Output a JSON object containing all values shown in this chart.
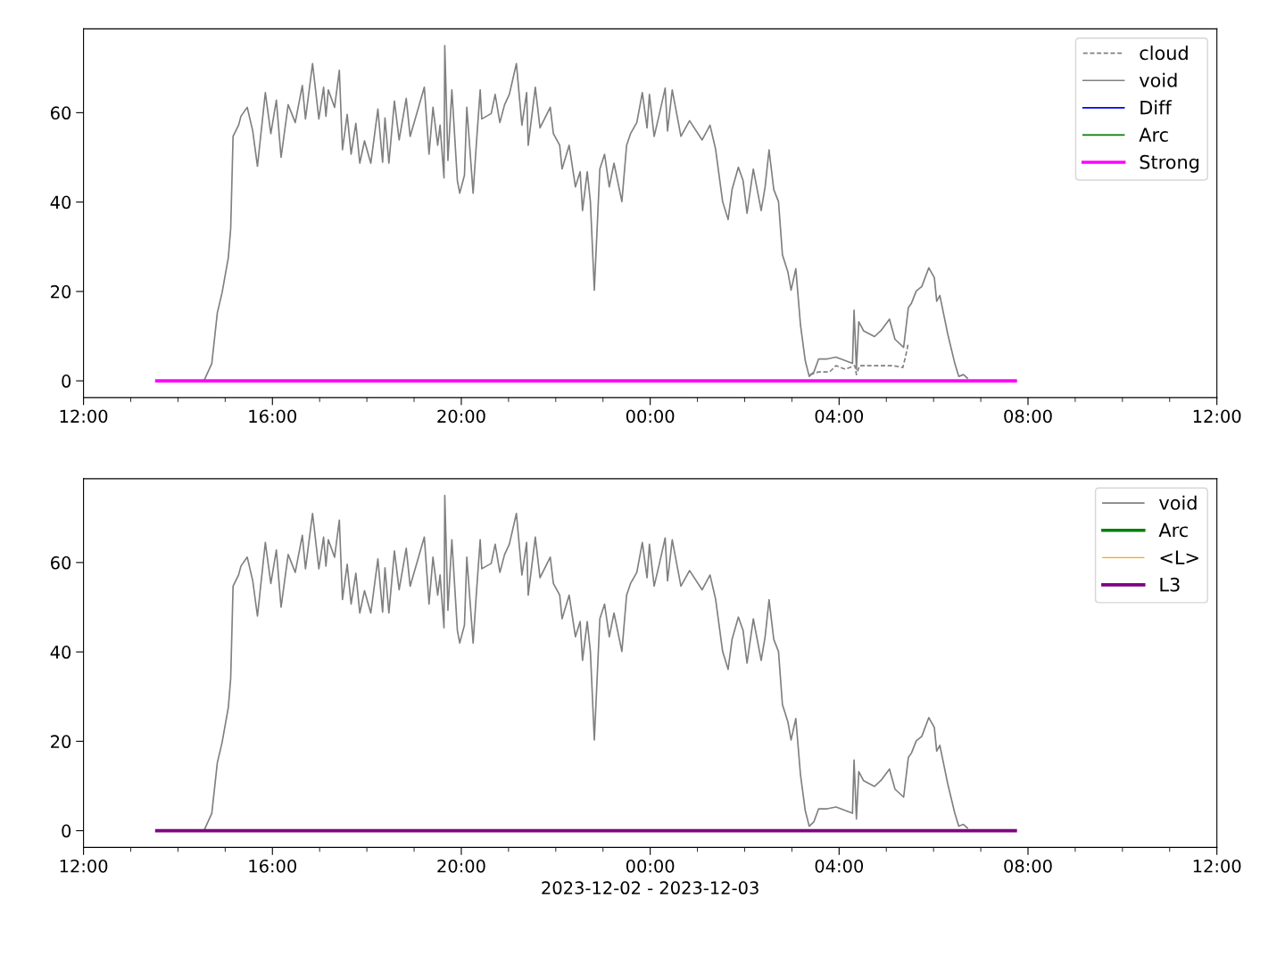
{
  "chart_data": [
    {
      "type": "line",
      "xlim": [
        "2023-12-02T12:00",
        "2023-12-03T12:00"
      ],
      "ylim": [
        -3.75,
        78.75
      ],
      "yticks": [
        0,
        20,
        40,
        60
      ],
      "xticks": [
        {
          "value": "2023-12-02T12:00",
          "label": "12:00"
        },
        {
          "value": "2023-12-02T13:00",
          "label": null
        },
        {
          "value": "2023-12-02T14:00",
          "label": null
        },
        {
          "value": "2023-12-02T15:00",
          "label": null
        },
        {
          "value": "2023-12-02T16:00",
          "label": "16:00"
        },
        {
          "value": "2023-12-02T17:00",
          "label": null
        },
        {
          "value": "2023-12-02T18:00",
          "label": null
        },
        {
          "value": "2023-12-02T19:00",
          "label": null
        },
        {
          "value": "2023-12-02T20:00",
          "label": "20:00"
        },
        {
          "value": "2023-12-02T21:00",
          "label": null
        },
        {
          "value": "2023-12-02T22:00",
          "label": null
        },
        {
          "value": "2023-12-02T23:00",
          "label": null
        },
        {
          "value": "2023-12-03T00:00",
          "label": "00:00"
        },
        {
          "value": "2023-12-03T01:00",
          "label": null
        },
        {
          "value": "2023-12-03T02:00",
          "label": null
        },
        {
          "value": "2023-12-03T03:00",
          "label": null
        },
        {
          "value": "2023-12-03T04:00",
          "label": "04:00"
        },
        {
          "value": "2023-12-03T05:00",
          "label": null
        },
        {
          "value": "2023-12-03T06:00",
          "label": null
        },
        {
          "value": "2023-12-03T07:00",
          "label": null
        },
        {
          "value": "2023-12-03T08:00",
          "label": "08:00"
        },
        {
          "value": "2023-12-03T09:00",
          "label": null
        },
        {
          "value": "2023-12-03T10:00",
          "label": null
        },
        {
          "value": "2023-12-03T11:00",
          "label": null
        },
        {
          "value": "2023-12-03T12:00",
          "label": "12:00"
        }
      ],
      "legend": "top right",
      "series": [
        {
          "name": "cloud",
          "color": "#808080",
          "line_style": "dashed",
          "x": [
            "2023-12-03T03:23",
            "2023-12-03T03:34",
            "2023-12-03T03:48",
            "2023-12-03T03:56",
            "2023-12-03T04:08",
            "2023-12-03T04:20",
            "2023-12-03T04:22",
            "2023-12-03T04:26",
            "2023-12-03T04:53",
            "2023-12-03T05:08",
            "2023-12-03T05:21",
            "2023-12-03T05:25",
            "2023-12-03T05:28"
          ],
          "values": [
            1.4,
            2,
            2,
            3.4,
            2.6,
            3.4,
            1.4,
            3.4,
            3.4,
            3.4,
            3,
            5.9,
            8.5
          ]
        },
        {
          "name": "void",
          "color": "#808080",
          "line_style": "solid",
          "x": [
            "2023-12-02T14:33",
            "2023-12-02T14:43",
            "2023-12-02T14:50",
            "2023-12-02T14:56",
            "2023-12-02T15:04",
            "2023-12-02T15:07",
            "2023-12-02T15:10",
            "2023-12-02T15:17",
            "2023-12-02T15:20",
            "2023-12-02T15:28",
            "2023-12-02T15:35",
            "2023-12-02T15:41",
            "2023-12-02T15:51",
            "2023-12-02T15:58",
            "2023-12-02T16:05",
            "2023-12-02T16:11",
            "2023-12-02T16:20",
            "2023-12-02T16:29",
            "2023-12-02T16:38",
            "2023-12-02T16:42",
            "2023-12-02T16:51",
            "2023-12-02T16:59",
            "2023-12-02T17:05",
            "2023-12-02T17:08",
            "2023-12-02T17:11",
            "2023-12-02T17:19",
            "2023-12-02T17:25",
            "2023-12-02T17:29",
            "2023-12-02T17:35",
            "2023-12-02T17:40",
            "2023-12-02T17:46",
            "2023-12-02T17:51",
            "2023-12-02T17:57",
            "2023-12-02T18:05",
            "2023-12-02T18:14",
            "2023-12-02T18:20",
            "2023-12-02T18:23",
            "2023-12-02T18:28",
            "2023-12-02T18:35",
            "2023-12-02T18:41",
            "2023-12-02T18:50",
            "2023-12-02T18:55",
            "2023-12-02T19:13",
            "2023-12-02T19:19",
            "2023-12-02T19:24",
            "2023-12-02T19:30",
            "2023-12-02T19:33",
            "2023-12-02T19:38",
            "2023-12-02T19:39",
            "2023-12-02T19:43",
            "2023-12-02T19:48",
            "2023-12-02T19:55",
            "2023-12-02T19:58",
            "2023-12-02T20:04",
            "2023-12-02T20:07",
            "2023-12-02T20:15",
            "2023-12-02T20:19",
            "2023-12-02T20:24",
            "2023-12-02T20:26",
            "2023-12-02T20:38",
            "2023-12-02T20:43",
            "2023-12-02T20:49",
            "2023-12-02T20:55",
            "2023-12-02T21:01",
            "2023-12-02T21:10",
            "2023-12-02T21:17",
            "2023-12-02T21:23",
            "2023-12-02T21:25",
            "2023-12-02T21:34",
            "2023-12-02T21:40",
            "2023-12-02T21:53",
            "2023-12-02T21:57",
            "2023-12-02T22:05",
            "2023-12-02T22:08",
            "2023-12-02T22:17",
            "2023-12-02T22:25",
            "2023-12-02T22:31",
            "2023-12-02T22:34",
            "2023-12-02T22:40",
            "2023-12-02T22:44",
            "2023-12-02T22:49",
            "2023-12-02T22:56",
            "2023-12-02T23:02",
            "2023-12-02T23:08",
            "2023-12-02T23:14",
            "2023-12-02T23:24",
            "2023-12-02T23:30",
            "2023-12-02T23:35",
            "2023-12-02T23:43",
            "2023-12-02T23:50",
            "2023-12-02T23:56",
            "2023-12-02T23:59",
            "2023-12-03T00:05",
            "2023-12-03T00:11",
            "2023-12-03T00:19",
            "2023-12-03T00:22",
            "2023-12-03T00:28",
            "2023-12-03T00:39",
            "2023-12-03T00:50",
            "2023-12-03T01:06",
            "2023-12-03T01:16",
            "2023-12-03T01:23",
            "2023-12-03T01:32",
            "2023-12-03T01:39",
            "2023-12-03T01:44",
            "2023-12-03T01:52",
            "2023-12-03T01:58",
            "2023-12-03T02:03",
            "2023-12-03T02:11",
            "2023-12-03T02:21",
            "2023-12-03T02:26",
            "2023-12-03T02:31",
            "2023-12-03T02:37",
            "2023-12-03T02:43",
            "2023-12-03T02:48",
            "2023-12-03T02:55",
            "2023-12-03T02:59",
            "2023-12-03T03:05",
            "2023-12-03T03:11",
            "2023-12-03T03:17",
            "2023-12-03T03:22",
            "2023-12-03T03:28",
            "2023-12-03T03:34",
            "2023-12-03T03:45",
            "2023-12-03T03:56",
            "2023-12-03T04:08",
            "2023-12-03T04:17",
            "2023-12-03T04:19",
            "2023-12-03T04:22",
            "2023-12-03T04:25",
            "2023-12-03T04:31",
            "2023-12-03T04:45",
            "2023-12-03T04:53",
            "2023-12-03T05:04",
            "2023-12-03T05:11",
            "2023-12-03T05:22",
            "2023-12-03T05:28",
            "2023-12-03T05:32",
            "2023-12-03T05:38",
            "2023-12-03T05:45",
            "2023-12-03T05:54",
            "2023-12-03T06:01",
            "2023-12-03T06:04",
            "2023-12-03T06:08",
            "2023-12-03T06:18",
            "2023-12-03T06:27",
            "2023-12-03T06:32",
            "2023-12-03T06:38",
            "2023-12-03T06:43"
          ],
          "values": [
            0,
            3.9,
            15.2,
            19.7,
            27.6,
            34.1,
            54.7,
            57.2,
            59.2,
            61.2,
            55.9,
            48,
            64.5,
            55.3,
            62.8,
            50,
            61.8,
            57.8,
            66.1,
            58.6,
            71,
            58.6,
            65.7,
            59.2,
            65.1,
            61.2,
            69.5,
            51.7,
            59.6,
            50.7,
            57.6,
            48.7,
            53.7,
            48.7,
            60.8,
            48.9,
            58.8,
            48.7,
            62.6,
            53.9,
            63.2,
            54.7,
            65.7,
            50.7,
            61.2,
            52.7,
            57.2,
            45.4,
            75,
            49.3,
            65.1,
            44.8,
            42,
            46,
            61.2,
            42,
            52.7,
            65.1,
            58.6,
            59.8,
            64.1,
            57.8,
            61.8,
            64.1,
            71,
            57.2,
            64.5,
            52.7,
            65.7,
            56.6,
            61.2,
            55.3,
            52.7,
            47.4,
            52.7,
            43.4,
            46.8,
            38.1,
            46.8,
            40.1,
            20.3,
            47.4,
            50.7,
            43.4,
            48.7,
            40.1,
            52.7,
            55.3,
            57.8,
            64.5,
            56.6,
            64.1,
            54.7,
            59.2,
            65.5,
            55.9,
            65.1,
            54.7,
            58.2,
            53.9,
            57.2,
            51.9,
            40.1,
            36.1,
            42.8,
            47.8,
            44.8,
            37.5,
            47.4,
            38.1,
            43.4,
            51.7,
            42.8,
            40.1,
            28.2,
            24.3,
            20.3,
            25.1,
            12.4,
            4.5,
            1,
            2,
            4.9,
            4.9,
            5.3,
            4.5,
            3.9,
            15.8,
            2.6,
            13.2,
            11.2,
            9.9,
            11.2,
            13.8,
            9.3,
            7.5,
            16.4,
            17.4,
            20.1,
            21.1,
            25.3,
            23.1,
            17.8,
            19.1,
            10.5,
            3.9,
            1,
            1.4,
            0.6
          ]
        },
        {
          "name": "Diff",
          "color": "#0000ff",
          "line_style": "solid"
        },
        {
          "name": "Arc",
          "color": "#008000",
          "line_style": "solid"
        },
        {
          "name": "Strong",
          "color": "#ff00ff",
          "line_style": "solid",
          "x": [
            "2023-12-02T13:33",
            "2023-12-03T07:44"
          ],
          "values": [
            0,
            0
          ]
        }
      ]
    },
    {
      "type": "line",
      "xlim": [
        "2023-12-02T12:00",
        "2023-12-03T12:00"
      ],
      "ylim": [
        -3.75,
        78.75
      ],
      "yticks": [
        0,
        20,
        40,
        60
      ],
      "xlabel": "2023-12-02 - 2023-12-03",
      "xticks": [
        {
          "value": "2023-12-02T12:00",
          "label": "12:00"
        },
        {
          "value": "2023-12-02T13:00",
          "label": null
        },
        {
          "value": "2023-12-02T14:00",
          "label": null
        },
        {
          "value": "2023-12-02T15:00",
          "label": null
        },
        {
          "value": "2023-12-02T16:00",
          "label": "16:00"
        },
        {
          "value": "2023-12-02T17:00",
          "label": null
        },
        {
          "value": "2023-12-02T18:00",
          "label": null
        },
        {
          "value": "2023-12-02T19:00",
          "label": null
        },
        {
          "value": "2023-12-02T20:00",
          "label": "20:00"
        },
        {
          "value": "2023-12-02T21:00",
          "label": null
        },
        {
          "value": "2023-12-02T22:00",
          "label": null
        },
        {
          "value": "2023-12-02T23:00",
          "label": null
        },
        {
          "value": "2023-12-03T00:00",
          "label": "00:00"
        },
        {
          "value": "2023-12-03T01:00",
          "label": null
        },
        {
          "value": "2023-12-03T02:00",
          "label": null
        },
        {
          "value": "2023-12-03T03:00",
          "label": null
        },
        {
          "value": "2023-12-03T04:00",
          "label": "04:00"
        },
        {
          "value": "2023-12-03T05:00",
          "label": null
        },
        {
          "value": "2023-12-03T06:00",
          "label": null
        },
        {
          "value": "2023-12-03T07:00",
          "label": null
        },
        {
          "value": "2023-12-03T08:00",
          "label": "08:00"
        },
        {
          "value": "2023-12-03T09:00",
          "label": null
        },
        {
          "value": "2023-12-03T10:00",
          "label": null
        },
        {
          "value": "2023-12-03T11:00",
          "label": null
        },
        {
          "value": "2023-12-03T12:00",
          "label": "12:00"
        }
      ],
      "legend": "top right",
      "series": [
        {
          "name": "void",
          "color": "#808080",
          "line_style": "solid",
          "x": [
            "2023-12-02T14:33",
            "2023-12-02T14:43",
            "2023-12-02T14:50",
            "2023-12-02T14:56",
            "2023-12-02T15:04",
            "2023-12-02T15:07",
            "2023-12-02T15:10",
            "2023-12-02T15:17",
            "2023-12-02T15:20",
            "2023-12-02T15:28",
            "2023-12-02T15:35",
            "2023-12-02T15:41",
            "2023-12-02T15:51",
            "2023-12-02T15:58",
            "2023-12-02T16:05",
            "2023-12-02T16:11",
            "2023-12-02T16:20",
            "2023-12-02T16:29",
            "2023-12-02T16:38",
            "2023-12-02T16:42",
            "2023-12-02T16:51",
            "2023-12-02T16:59",
            "2023-12-02T17:05",
            "2023-12-02T17:08",
            "2023-12-02T17:11",
            "2023-12-02T17:19",
            "2023-12-02T17:25",
            "2023-12-02T17:29",
            "2023-12-02T17:35",
            "2023-12-02T17:40",
            "2023-12-02T17:46",
            "2023-12-02T17:51",
            "2023-12-02T17:57",
            "2023-12-02T18:05",
            "2023-12-02T18:14",
            "2023-12-02T18:20",
            "2023-12-02T18:23",
            "2023-12-02T18:28",
            "2023-12-02T18:35",
            "2023-12-02T18:41",
            "2023-12-02T18:50",
            "2023-12-02T18:55",
            "2023-12-02T19:13",
            "2023-12-02T19:19",
            "2023-12-02T19:24",
            "2023-12-02T19:30",
            "2023-12-02T19:33",
            "2023-12-02T19:38",
            "2023-12-02T19:39",
            "2023-12-02T19:43",
            "2023-12-02T19:48",
            "2023-12-02T19:55",
            "2023-12-02T19:58",
            "2023-12-02T20:04",
            "2023-12-02T20:07",
            "2023-12-02T20:15",
            "2023-12-02T20:19",
            "2023-12-02T20:24",
            "2023-12-02T20:26",
            "2023-12-02T20:38",
            "2023-12-02T20:43",
            "2023-12-02T20:49",
            "2023-12-02T20:55",
            "2023-12-02T21:01",
            "2023-12-02T21:10",
            "2023-12-02T21:17",
            "2023-12-02T21:23",
            "2023-12-02T21:25",
            "2023-12-02T21:34",
            "2023-12-02T21:40",
            "2023-12-02T21:53",
            "2023-12-02T21:57",
            "2023-12-02T22:05",
            "2023-12-02T22:08",
            "2023-12-02T22:17",
            "2023-12-02T22:25",
            "2023-12-02T22:31",
            "2023-12-02T22:34",
            "2023-12-02T22:40",
            "2023-12-02T22:44",
            "2023-12-02T22:49",
            "2023-12-02T22:56",
            "2023-12-02T23:02",
            "2023-12-02T23:08",
            "2023-12-02T23:14",
            "2023-12-02T23:24",
            "2023-12-02T23:30",
            "2023-12-02T23:35",
            "2023-12-02T23:43",
            "2023-12-02T23:50",
            "2023-12-02T23:56",
            "2023-12-02T23:59",
            "2023-12-03T00:05",
            "2023-12-03T00:11",
            "2023-12-03T00:19",
            "2023-12-03T00:22",
            "2023-12-03T00:28",
            "2023-12-03T00:39",
            "2023-12-03T00:50",
            "2023-12-03T01:06",
            "2023-12-03T01:16",
            "2023-12-03T01:23",
            "2023-12-03T01:32",
            "2023-12-03T01:39",
            "2023-12-03T01:44",
            "2023-12-03T01:52",
            "2023-12-03T01:58",
            "2023-12-03T02:03",
            "2023-12-03T02:11",
            "2023-12-03T02:21",
            "2023-12-03T02:26",
            "2023-12-03T02:31",
            "2023-12-03T02:37",
            "2023-12-03T02:43",
            "2023-12-03T02:48",
            "2023-12-03T02:55",
            "2023-12-03T02:59",
            "2023-12-03T03:05",
            "2023-12-03T03:11",
            "2023-12-03T03:17",
            "2023-12-03T03:22",
            "2023-12-03T03:28",
            "2023-12-03T03:34",
            "2023-12-03T03:45",
            "2023-12-03T03:56",
            "2023-12-03T04:08",
            "2023-12-03T04:17",
            "2023-12-03T04:19",
            "2023-12-03T04:22",
            "2023-12-03T04:25",
            "2023-12-03T04:31",
            "2023-12-03T04:45",
            "2023-12-03T04:53",
            "2023-12-03T05:04",
            "2023-12-03T05:11",
            "2023-12-03T05:22",
            "2023-12-03T05:28",
            "2023-12-03T05:32",
            "2023-12-03T05:38",
            "2023-12-03T05:45",
            "2023-12-03T05:54",
            "2023-12-03T06:01",
            "2023-12-03T06:04",
            "2023-12-03T06:08",
            "2023-12-03T06:18",
            "2023-12-03T06:27",
            "2023-12-03T06:32",
            "2023-12-03T06:38",
            "2023-12-03T06:43"
          ],
          "values": [
            0,
            3.9,
            15.2,
            19.7,
            27.6,
            34.1,
            54.7,
            57.2,
            59.2,
            61.2,
            55.9,
            48,
            64.5,
            55.3,
            62.8,
            50,
            61.8,
            57.8,
            66.1,
            58.6,
            71,
            58.6,
            65.7,
            59.2,
            65.1,
            61.2,
            69.5,
            51.7,
            59.6,
            50.7,
            57.6,
            48.7,
            53.7,
            48.7,
            60.8,
            48.9,
            58.8,
            48.7,
            62.6,
            53.9,
            63.2,
            54.7,
            65.7,
            50.7,
            61.2,
            52.7,
            57.2,
            45.4,
            75,
            49.3,
            65.1,
            44.8,
            42,
            46,
            61.2,
            42,
            52.7,
            65.1,
            58.6,
            59.8,
            64.1,
            57.8,
            61.8,
            64.1,
            71,
            57.2,
            64.5,
            52.7,
            65.7,
            56.6,
            61.2,
            55.3,
            52.7,
            47.4,
            52.7,
            43.4,
            46.8,
            38.1,
            46.8,
            40.1,
            20.3,
            47.4,
            50.7,
            43.4,
            48.7,
            40.1,
            52.7,
            55.3,
            57.8,
            64.5,
            56.6,
            64.1,
            54.7,
            59.2,
            65.5,
            55.9,
            65.1,
            54.7,
            58.2,
            53.9,
            57.2,
            51.9,
            40.1,
            36.1,
            42.8,
            47.8,
            44.8,
            37.5,
            47.4,
            38.1,
            43.4,
            51.7,
            42.8,
            40.1,
            28.2,
            24.3,
            20.3,
            25.1,
            12.4,
            4.5,
            1,
            2,
            4.9,
            4.9,
            5.3,
            4.5,
            3.9,
            15.8,
            2.6,
            13.2,
            11.2,
            9.9,
            11.2,
            13.8,
            9.3,
            7.5,
            16.4,
            17.4,
            20.1,
            21.1,
            25.3,
            23.1,
            17.8,
            19.1,
            10.5,
            3.9,
            1,
            1.4,
            0.6
          ]
        },
        {
          "name": "Arc",
          "color": "#008000",
          "line_style": "solid"
        },
        {
          "name": "<L>",
          "color": "#ffa500",
          "line_style": "solid"
        },
        {
          "name": "L3",
          "color": "#800080",
          "line_style": "solid",
          "x": [
            "2023-12-02T13:33",
            "2023-12-03T07:44"
          ],
          "values": [
            0,
            0
          ]
        }
      ]
    }
  ]
}
